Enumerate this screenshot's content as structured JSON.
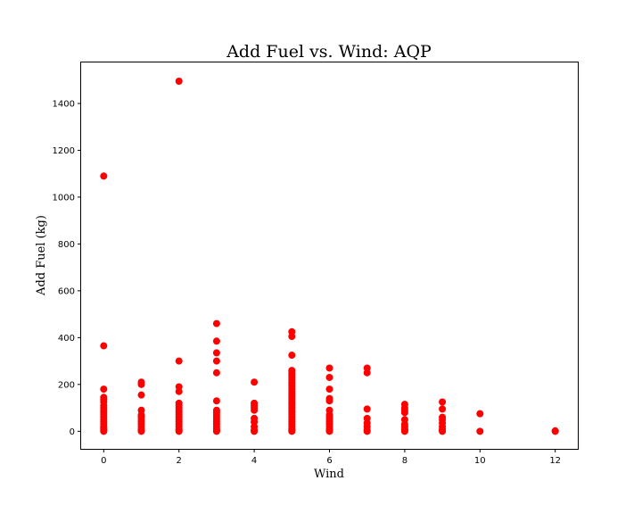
{
  "chart_data": {
    "type": "scatter",
    "title": "Add Fuel vs. Wind: AQP",
    "xlabel": "Wind",
    "ylabel": "Add Fuel (kg)",
    "xlim": [
      -0.6,
      12.6
    ],
    "ylim": [
      -75,
      1575
    ],
    "xticks": [
      0,
      2,
      4,
      6,
      8,
      10,
      12
    ],
    "yticks": [
      0,
      200,
      400,
      600,
      800,
      1000,
      1200,
      1400
    ],
    "grid": false,
    "marker_color": "#ff0000",
    "series": [
      {
        "points": [
          [
            0,
            0
          ],
          [
            0,
            5
          ],
          [
            0,
            10
          ],
          [
            0,
            15
          ],
          [
            0,
            20
          ],
          [
            0,
            30
          ],
          [
            0,
            40
          ],
          [
            0,
            50
          ],
          [
            0,
            60
          ],
          [
            0,
            70
          ],
          [
            0,
            80
          ],
          [
            0,
            90
          ],
          [
            0,
            100
          ],
          [
            0,
            110
          ],
          [
            0,
            125
          ],
          [
            0,
            135
          ],
          [
            0,
            145
          ],
          [
            0,
            180
          ],
          [
            0,
            365
          ],
          [
            0,
            1090
          ],
          [
            1,
            0
          ],
          [
            1,
            5
          ],
          [
            1,
            10
          ],
          [
            1,
            20
          ],
          [
            1,
            30
          ],
          [
            1,
            40
          ],
          [
            1,
            50
          ],
          [
            1,
            60
          ],
          [
            1,
            65
          ],
          [
            1,
            70
          ],
          [
            1,
            90
          ],
          [
            1,
            155
          ],
          [
            1,
            200
          ],
          [
            1,
            210
          ],
          [
            2,
            0
          ],
          [
            2,
            5
          ],
          [
            2,
            10
          ],
          [
            2,
            20
          ],
          [
            2,
            30
          ],
          [
            2,
            40
          ],
          [
            2,
            50
          ],
          [
            2,
            60
          ],
          [
            2,
            70
          ],
          [
            2,
            80
          ],
          [
            2,
            90
          ],
          [
            2,
            100
          ],
          [
            2,
            110
          ],
          [
            2,
            120
          ],
          [
            2,
            170
          ],
          [
            2,
            190
          ],
          [
            2,
            300
          ],
          [
            2,
            1495
          ],
          [
            3,
            0
          ],
          [
            3,
            5
          ],
          [
            3,
            10
          ],
          [
            3,
            20
          ],
          [
            3,
            30
          ],
          [
            3,
            40
          ],
          [
            3,
            50
          ],
          [
            3,
            60
          ],
          [
            3,
            70
          ],
          [
            3,
            80
          ],
          [
            3,
            90
          ],
          [
            3,
            130
          ],
          [
            3,
            250
          ],
          [
            3,
            300
          ],
          [
            3,
            335
          ],
          [
            3,
            385
          ],
          [
            3,
            460
          ],
          [
            4,
            0
          ],
          [
            4,
            5
          ],
          [
            4,
            20
          ],
          [
            4,
            40
          ],
          [
            4,
            55
          ],
          [
            4,
            90
          ],
          [
            4,
            100
          ],
          [
            4,
            110
          ],
          [
            4,
            120
          ],
          [
            4,
            210
          ],
          [
            5,
            0
          ],
          [
            5,
            5
          ],
          [
            5,
            10
          ],
          [
            5,
            20
          ],
          [
            5,
            30
          ],
          [
            5,
            40
          ],
          [
            5,
            50
          ],
          [
            5,
            60
          ],
          [
            5,
            70
          ],
          [
            5,
            80
          ],
          [
            5,
            90
          ],
          [
            5,
            100
          ],
          [
            5,
            110
          ],
          [
            5,
            120
          ],
          [
            5,
            130
          ],
          [
            5,
            140
          ],
          [
            5,
            150
          ],
          [
            5,
            160
          ],
          [
            5,
            170
          ],
          [
            5,
            180
          ],
          [
            5,
            190
          ],
          [
            5,
            200
          ],
          [
            5,
            210
          ],
          [
            5,
            220
          ],
          [
            5,
            230
          ],
          [
            5,
            240
          ],
          [
            5,
            250
          ],
          [
            5,
            260
          ],
          [
            5,
            325
          ],
          [
            5,
            405
          ],
          [
            5,
            425
          ],
          [
            6,
            0
          ],
          [
            6,
            5
          ],
          [
            6,
            10
          ],
          [
            6,
            20
          ],
          [
            6,
            30
          ],
          [
            6,
            40
          ],
          [
            6,
            50
          ],
          [
            6,
            60
          ],
          [
            6,
            70
          ],
          [
            6,
            90
          ],
          [
            6,
            130
          ],
          [
            6,
            140
          ],
          [
            6,
            180
          ],
          [
            6,
            230
          ],
          [
            6,
            270
          ],
          [
            7,
            0
          ],
          [
            7,
            5
          ],
          [
            7,
            20
          ],
          [
            7,
            35
          ],
          [
            7,
            55
          ],
          [
            7,
            95
          ],
          [
            7,
            250
          ],
          [
            7,
            270
          ],
          [
            8,
            0
          ],
          [
            8,
            5
          ],
          [
            8,
            10
          ],
          [
            8,
            20
          ],
          [
            8,
            30
          ],
          [
            8,
            50
          ],
          [
            8,
            80
          ],
          [
            8,
            90
          ],
          [
            8,
            100
          ],
          [
            8,
            115
          ],
          [
            9,
            0
          ],
          [
            9,
            5
          ],
          [
            9,
            10
          ],
          [
            9,
            20
          ],
          [
            9,
            35
          ],
          [
            9,
            50
          ],
          [
            9,
            60
          ],
          [
            9,
            95
          ],
          [
            9,
            125
          ],
          [
            10,
            0
          ],
          [
            10,
            75
          ],
          [
            12,
            0
          ],
          [
            12,
            2
          ]
        ]
      }
    ]
  }
}
